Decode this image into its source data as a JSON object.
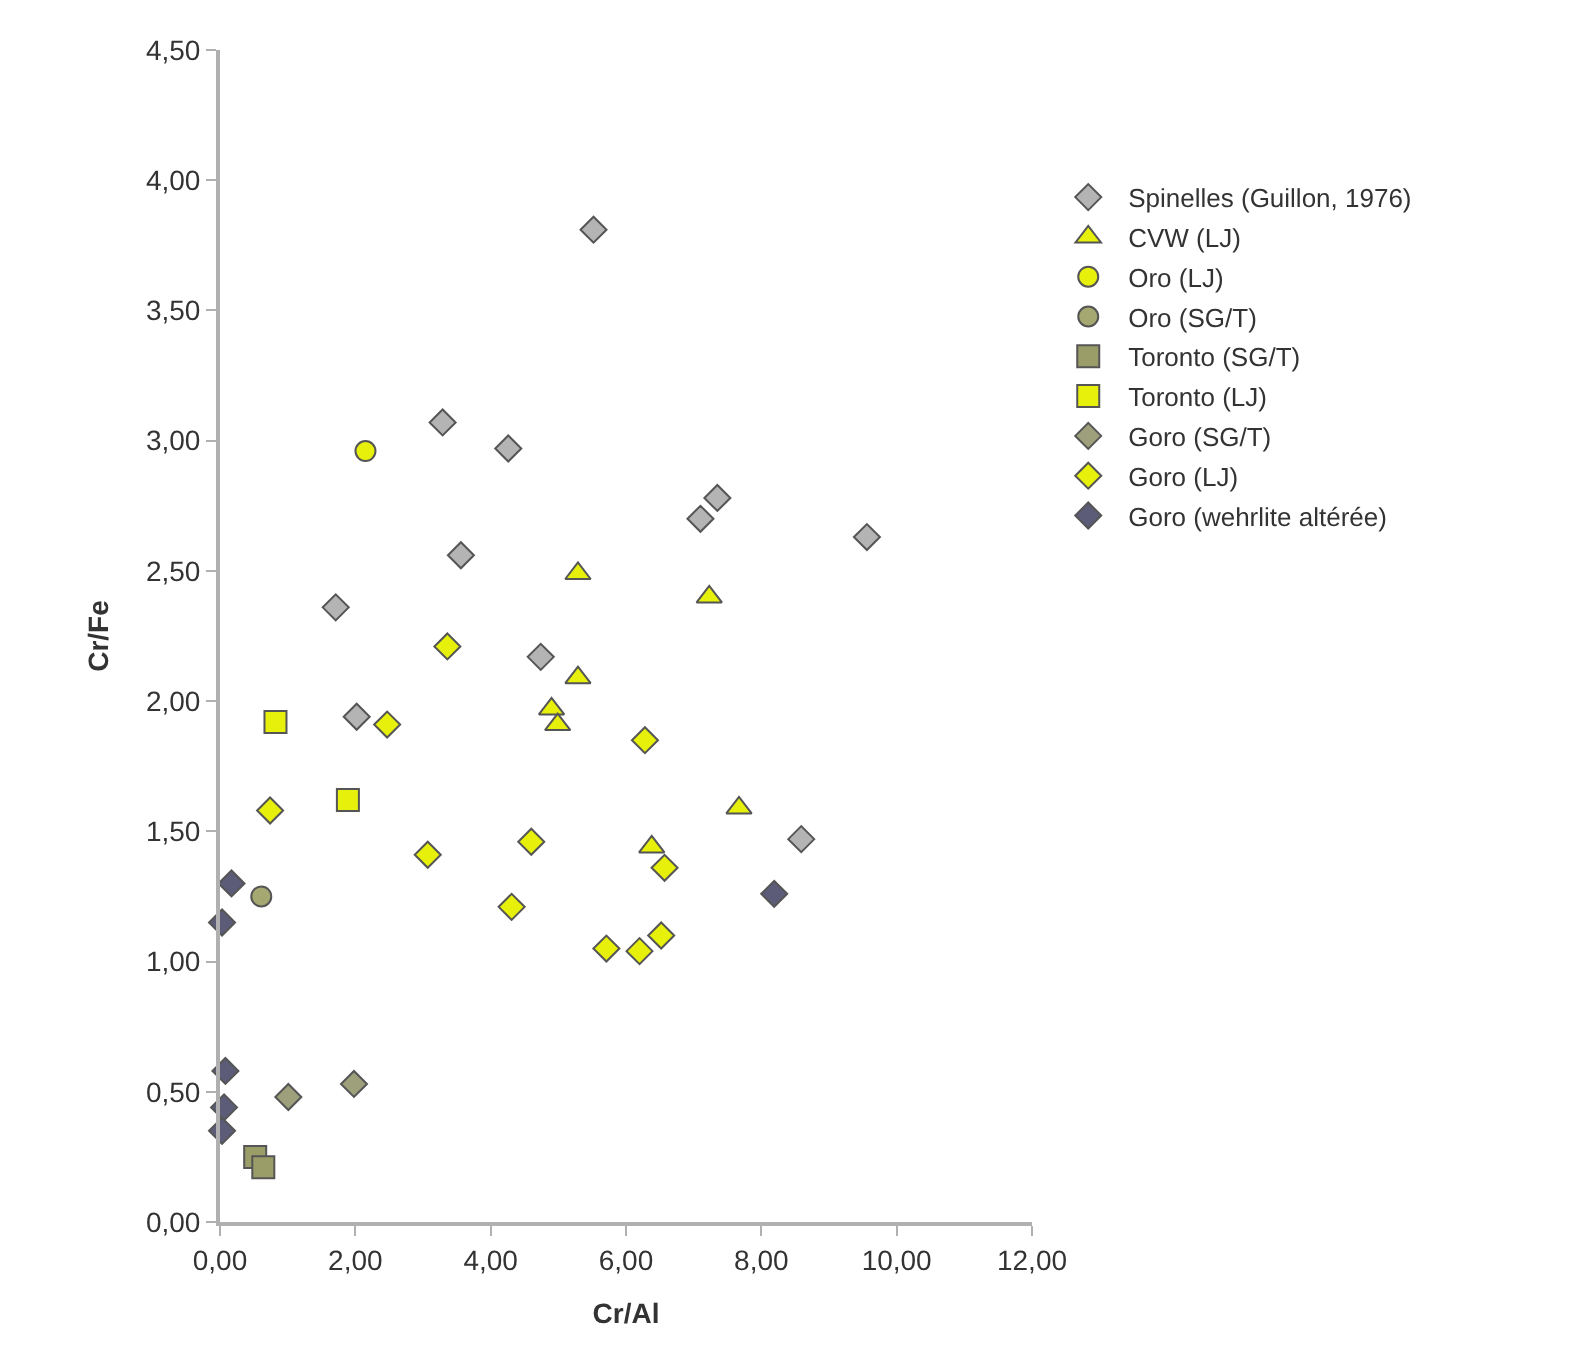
{
  "chart_data": {
    "type": "scatter",
    "xlabel": "Cr/Al",
    "ylabel": "Cr/Fe",
    "xlim": [
      0,
      12
    ],
    "ylim": [
      0,
      4.5
    ],
    "xticks": [
      {
        "value": 0,
        "label": "0,00"
      },
      {
        "value": 2,
        "label": "2,00"
      },
      {
        "value": 4,
        "label": "4,00"
      },
      {
        "value": 6,
        "label": "6,00"
      },
      {
        "value": 8,
        "label": "8,00"
      },
      {
        "value": 10,
        "label": "10,00"
      },
      {
        "value": 12,
        "label": "12,00"
      }
    ],
    "yticks": [
      {
        "value": 0,
        "label": "0,00"
      },
      {
        "value": 0.5,
        "label": "0,50"
      },
      {
        "value": 1,
        "label": "1,00"
      },
      {
        "value": 1.5,
        "label": "1,50"
      },
      {
        "value": 2,
        "label": "2,00"
      },
      {
        "value": 2.5,
        "label": "2,50"
      },
      {
        "value": 3,
        "label": "3,00"
      },
      {
        "value": 3.5,
        "label": "3,50"
      },
      {
        "value": 4,
        "label": "4,00"
      },
      {
        "value": 4.5,
        "label": "4,50"
      }
    ],
    "grid": false,
    "legend": "right",
    "series": [
      {
        "name": "Spinelles (Guillon, 1976)",
        "color": "#b4b4b4",
        "marker": "diamond",
        "x": [
          5.52,
          3.29,
          4.26,
          7.35,
          7.1,
          9.56,
          3.56,
          1.71,
          4.74,
          2.02,
          8.59
        ],
        "values": [
          3.81,
          3.07,
          2.97,
          2.78,
          2.7,
          2.63,
          2.56,
          2.36,
          2.17,
          1.94,
          1.47
        ]
      },
      {
        "name": "CVW (LJ)",
        "color": "#e6f00a",
        "marker": "triangle",
        "x": [
          5.29,
          7.23,
          5.29,
          4.9,
          4.99,
          7.67,
          6.38
        ],
        "values": [
          2.49,
          2.4,
          2.09,
          1.97,
          1.91,
          1.59,
          1.44
        ]
      },
      {
        "name": "Oro (LJ)",
        "color": "#e6f00a",
        "marker": "circle",
        "x": [
          2.15
        ],
        "values": [
          2.96
        ]
      },
      {
        "name": "Oro (SG/T)",
        "color": "#a5a870",
        "marker": "circle",
        "x": [
          0.61
        ],
        "values": [
          1.25
        ]
      },
      {
        "name": "Toronto (SG/T)",
        "color": "#9a9d68",
        "marker": "square",
        "x": [
          0.52,
          0.64
        ],
        "values": [
          0.25,
          0.21
        ]
      },
      {
        "name": "Toronto (LJ)",
        "color": "#e6f00a",
        "marker": "square",
        "x": [
          0.82,
          1.89
        ],
        "values": [
          1.92,
          1.62
        ]
      },
      {
        "name": "Goro (SG/T)",
        "color": "#9da07a",
        "marker": "diamond",
        "x": [
          1.01,
          1.98
        ],
        "values": [
          0.48,
          0.53
        ]
      },
      {
        "name": "Goro (LJ)",
        "color": "#e6f00a",
        "marker": "diamond",
        "x": [
          3.36,
          2.47,
          6.28,
          0.74,
          3.07,
          4.6,
          6.57,
          4.31,
          5.71,
          6.2,
          6.52
        ],
        "values": [
          2.21,
          1.91,
          1.85,
          1.58,
          1.41,
          1.46,
          1.36,
          1.21,
          1.05,
          1.04,
          1.1
        ]
      },
      {
        "name": "Goro (wehrlite altérée)",
        "color": "#5c5c78",
        "marker": "diamond",
        "x": [
          0.17,
          0.03,
          8.19,
          0.08,
          0.06,
          0.03
        ],
        "values": [
          1.3,
          1.15,
          1.26,
          0.58,
          0.44,
          0.35
        ]
      }
    ]
  }
}
